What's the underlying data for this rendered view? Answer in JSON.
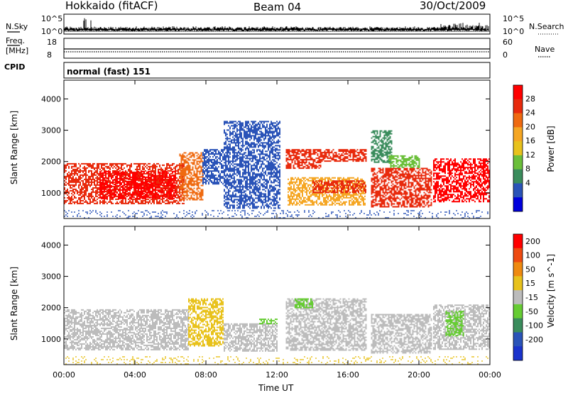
{
  "header": {
    "site": "Hokkaido (fitACF)",
    "beam": "Beam 04",
    "date": "30/Oct/2009"
  },
  "summary": {
    "nsky_label": "N.Sky",
    "nsky_ticks": [
      "10^5",
      "10^0"
    ],
    "nsearch_label": "N.Search",
    "freq_label_1": "Freq.",
    "freq_label_2": "[MHz]",
    "freq_ticks": [
      "18",
      "8"
    ],
    "nave_label": "Nave",
    "nave_ticks": [
      "60",
      "0"
    ],
    "cpid_label": "CPID",
    "mode_text": "normal (fast) 151"
  },
  "colors": {
    "power_scale": [
      "#0000dd",
      "#2a53b8",
      "#3a8c5c",
      "#6bbf3a",
      "#e8c21c",
      "#f5a623",
      "#ef6a10",
      "#e82a0c",
      "#ff0000"
    ],
    "velocity_scale": [
      "#1a33cc",
      "#2a53b8",
      "#3a8c5c",
      "#66cc33",
      "#bcbcbc",
      "#e8c21c",
      "#ef8a10",
      "#ee4a10",
      "#ff0000"
    ]
  },
  "chart_data": [
    {
      "type": "heatmap",
      "name_hint": "power panel",
      "xlabel": "",
      "ylabel": "Slant Range [km]",
      "x_ticks": [
        "00:00",
        "04:00",
        "08:00",
        "12:00",
        "16:00",
        "20:00",
        "00:00"
      ],
      "y_ticks": [
        "1000",
        "2000",
        "3000",
        "4000"
      ],
      "xlim_hours": [
        0,
        24
      ],
      "ylim_km": [
        180,
        4600
      ],
      "colorbar_title": "Power [dB]",
      "colorbar_ticks": [
        "28",
        "24",
        "20",
        "16",
        "12",
        "8",
        "4"
      ],
      "regions": [
        {
          "t0": 0.0,
          "t1": 6.8,
          "r0": 650,
          "r1": 1950,
          "level": 7
        },
        {
          "t0": 2.0,
          "t1": 6.3,
          "r0": 800,
          "r1": 1700,
          "level": 8
        },
        {
          "t0": 6.5,
          "t1": 7.8,
          "r0": 800,
          "r1": 2300,
          "level": 6
        },
        {
          "t0": 7.8,
          "t1": 9.0,
          "r0": 1300,
          "r1": 2400,
          "level": 1
        },
        {
          "t0": 9.0,
          "t1": 12.2,
          "r0": 500,
          "r1": 3300,
          "level": 1
        },
        {
          "t0": 12.5,
          "t1": 14.5,
          "r0": 1800,
          "r1": 2400,
          "level": 7
        },
        {
          "t0": 12.6,
          "t1": 17.0,
          "r0": 600,
          "r1": 1500,
          "level": 5
        },
        {
          "t0": 14.5,
          "t1": 17.0,
          "r0": 2000,
          "r1": 2400,
          "level": 7
        },
        {
          "t0": 14.0,
          "t1": 17.0,
          "r0": 1000,
          "r1": 1400,
          "level": 7
        },
        {
          "t0": 17.3,
          "t1": 20.7,
          "r0": 550,
          "r1": 1800,
          "level": 7
        },
        {
          "t0": 17.3,
          "t1": 18.5,
          "r0": 2000,
          "r1": 3000,
          "level": 2
        },
        {
          "t0": 18.3,
          "t1": 20.0,
          "r0": 1800,
          "r1": 2200,
          "level": 3
        },
        {
          "t0": 20.8,
          "t1": 24.0,
          "r0": 700,
          "r1": 2100,
          "level": 8
        }
      ]
    },
    {
      "type": "heatmap",
      "name_hint": "velocity panel",
      "xlabel": "Time UT",
      "ylabel": "Slant Range [km]",
      "x_ticks": [
        "00:00",
        "04:00",
        "08:00",
        "12:00",
        "16:00",
        "20:00",
        "00:00"
      ],
      "y_ticks": [
        "1000",
        "2000",
        "3000",
        "4000"
      ],
      "xlim_hours": [
        0,
        24
      ],
      "ylim_km": [
        180,
        4600
      ],
      "colorbar_title": "Velocity [m s^-1]",
      "colorbar_ticks": [
        "200",
        "100",
        "50",
        "15",
        "-15",
        "-50",
        "-100",
        "-200"
      ],
      "regions": [
        {
          "t0": 0.0,
          "t1": 7.0,
          "r0": 650,
          "r1": 1950,
          "level": 4
        },
        {
          "t0": 7.0,
          "t1": 9.0,
          "r0": 800,
          "r1": 2300,
          "level": 5
        },
        {
          "t0": 9.0,
          "t1": 12.0,
          "r0": 600,
          "r1": 1500,
          "level": 4
        },
        {
          "t0": 11.0,
          "t1": 12.0,
          "r0": 1500,
          "r1": 1650,
          "level": 3
        },
        {
          "t0": 12.5,
          "t1": 17.0,
          "r0": 650,
          "r1": 2300,
          "level": 4
        },
        {
          "t0": 13.0,
          "t1": 14.0,
          "r0": 2000,
          "r1": 2300,
          "level": 3
        },
        {
          "t0": 17.3,
          "t1": 20.7,
          "r0": 550,
          "r1": 1800,
          "level": 4
        },
        {
          "t0": 20.8,
          "t1": 24.0,
          "r0": 650,
          "r1": 2100,
          "level": 4
        },
        {
          "t0": 21.5,
          "t1": 22.5,
          "r0": 1100,
          "r1": 1900,
          "level": 3
        }
      ]
    }
  ]
}
